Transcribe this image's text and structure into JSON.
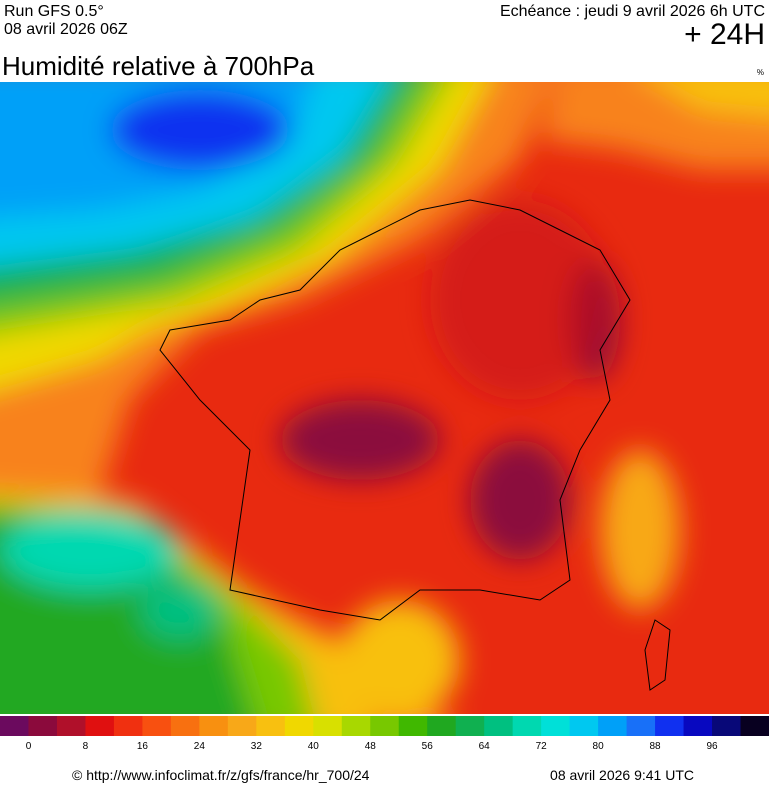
{
  "header": {
    "run": "Run GFS 0.5°",
    "run_date": "08 avril 2026 06Z",
    "forecast": "Echéance : jeudi 9 avril 2026 6h UTC",
    "lead": "+ 24H"
  },
  "title": "Humidité relative à 700hPa",
  "unit": "%",
  "legend": {
    "colors": [
      "#6b0a5e",
      "#8b0a3c",
      "#b0102a",
      "#e01010",
      "#f03010",
      "#f85010",
      "#f87010",
      "#f89010",
      "#f8a818",
      "#f8c010",
      "#f0d800",
      "#d8e000",
      "#a8d800",
      "#78c800",
      "#40b800",
      "#20a820",
      "#10b050",
      "#00c080",
      "#00d8b0",
      "#00e0d8",
      "#00c8f0",
      "#00a0f8",
      "#1870f8",
      "#1030f0",
      "#0808c0",
      "#080878",
      "#080020"
    ],
    "ticks": [
      0,
      8,
      16,
      24,
      32,
      40,
      48,
      56,
      64,
      72,
      80,
      88,
      96
    ]
  },
  "footer": {
    "url": "© http://www.infoclimat.fr/z/gfs/france/hr_700/24",
    "issued": "08 avril 2026  9:41 UTC"
  }
}
